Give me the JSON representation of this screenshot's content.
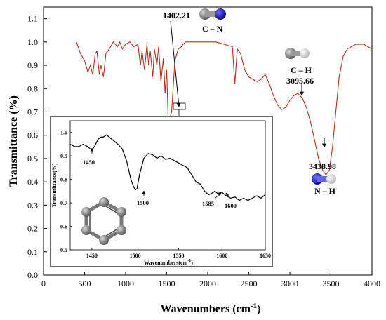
{
  "chart_data": [
    {
      "type": "line",
      "xlabel": "Wavenumbers (cm",
      "xlabel_sup": "-1",
      "xlabel_end": ")",
      "ylabel": "Transmittance (%)",
      "xlim": [
        0,
        4000
      ],
      "ylim": [
        0.0,
        1.15
      ],
      "xticks": [
        "0",
        "500",
        "1000",
        "1500",
        "2000",
        "2500",
        "3000",
        "3500",
        "4000"
      ],
      "yticks": [
        "0.0",
        "0.1",
        "0.2",
        "0.3",
        "0.4",
        "0.5",
        "0.6",
        "0.7",
        "0.8",
        "0.9",
        "1.0",
        "1.1"
      ],
      "series": [
        {
          "color": "#b03020",
          "x": [
            400,
            450,
            500,
            540,
            570,
            600,
            630,
            650,
            680,
            700,
            730,
            760,
            800,
            850,
            900,
            930,
            960,
            1000,
            1050,
            1100,
            1150,
            1180,
            1200,
            1230,
            1260,
            1280,
            1300,
            1330,
            1350,
            1380,
            1402,
            1430,
            1460,
            1480,
            1500,
            1520,
            1560,
            1600,
            1640,
            1680,
            1700,
            1730,
            1760,
            1800,
            1850,
            1900,
            2000,
            2100,
            2200,
            2300,
            2330,
            2345,
            2360,
            2380,
            2400,
            2450,
            2500,
            2550,
            2600,
            2650,
            2700,
            2750,
            2800,
            2850,
            2900,
            2950,
            3000,
            3050,
            3095,
            3150,
            3200,
            3250,
            3300,
            3350,
            3400,
            3440,
            3480,
            3520,
            3560,
            3600,
            3650,
            3700,
            3750,
            3800,
            3850,
            3900,
            3950,
            4000
          ],
          "y": [
            1.0,
            0.95,
            0.92,
            0.87,
            0.9,
            0.86,
            0.95,
            0.96,
            0.86,
            0.9,
            0.85,
            0.95,
            0.97,
            1.0,
            0.98,
            1.0,
            0.97,
            0.99,
            1.0,
            0.98,
            0.99,
            0.9,
            0.96,
            0.88,
            0.99,
            0.9,
            0.96,
            0.85,
            0.97,
            0.9,
            0.98,
            0.83,
            0.93,
            0.78,
            0.88,
            0.65,
            0.7,
            0.92,
            0.97,
            0.98,
            0.99,
            1.0,
            1.0,
            1.0,
            1.0,
            1.0,
            1.0,
            1.0,
            0.99,
            0.98,
            0.82,
            0.9,
            0.97,
            0.96,
            0.95,
            0.88,
            0.85,
            0.84,
            0.83,
            0.84,
            0.86,
            0.82,
            0.77,
            0.73,
            0.71,
            0.72,
            0.75,
            0.77,
            0.78,
            0.76,
            0.72,
            0.66,
            0.58,
            0.5,
            0.45,
            0.43,
            0.45,
            0.55,
            0.7,
            0.85,
            0.94,
            0.97,
            0.98,
            0.99,
            0.99,
            0.99,
            0.98,
            0.97
          ]
        }
      ],
      "annotations": [
        {
          "label": "1402.21",
          "x": 1402,
          "y": 0.98
        },
        {
          "label": "C – N"
        },
        {
          "label": "C – H"
        },
        {
          "label": "3095.66",
          "x": 3095,
          "y": 0.78
        },
        {
          "label": "3438.98",
          "x": 3440,
          "y": 0.43
        },
        {
          "label": "N – H"
        }
      ],
      "grid": false
    },
    {
      "type": "line",
      "ylabel": "Transmittance(%)",
      "xlabel": "Wavenumbers(cm",
      "xlabel_sup": "-1",
      "xlabel_end": ")",
      "xlim": [
        1425,
        1650
      ],
      "ylim": [
        0.5,
        1.05
      ],
      "xticks": [
        "1450",
        "1500",
        "1550",
        "1600",
        "1650"
      ],
      "yticks": [
        "0.5",
        "0.6",
        "0.7",
        "0.8",
        "0.9",
        "1.0"
      ],
      "series": [
        {
          "color": "#000000",
          "x": [
            1425,
            1430,
            1435,
            1440,
            1445,
            1448,
            1450,
            1453,
            1457,
            1460,
            1463,
            1467,
            1470,
            1475,
            1480,
            1485,
            1490,
            1495,
            1498,
            1500,
            1502,
            1505,
            1510,
            1515,
            1520,
            1525,
            1530,
            1535,
            1540,
            1545,
            1550,
            1555,
            1560,
            1565,
            1570,
            1575,
            1580,
            1583,
            1585,
            1588,
            1592,
            1595,
            1600,
            1605,
            1610,
            1615,
            1620,
            1625,
            1630,
            1635,
            1640,
            1645,
            1650
          ],
          "y": [
            0.95,
            0.94,
            0.94,
            0.95,
            0.94,
            0.93,
            0.925,
            0.94,
            0.97,
            0.98,
            0.98,
            0.99,
            0.98,
            0.965,
            0.95,
            0.93,
            0.88,
            0.8,
            0.77,
            0.755,
            0.76,
            0.82,
            0.89,
            0.91,
            0.905,
            0.89,
            0.9,
            0.885,
            0.89,
            0.88,
            0.87,
            0.86,
            0.85,
            0.82,
            0.79,
            0.78,
            0.75,
            0.74,
            0.735,
            0.74,
            0.75,
            0.74,
            0.745,
            0.73,
            0.72,
            0.725,
            0.71,
            0.72,
            0.71,
            0.72,
            0.73,
            0.72,
            0.735
          ]
        }
      ],
      "annotations": [
        {
          "label": "1450",
          "x": 1450,
          "y": 0.925
        },
        {
          "label": "1500",
          "x": 1500,
          "y": 0.755
        },
        {
          "label": "1585",
          "x": 1585,
          "y": 0.735
        },
        {
          "label": "1600",
          "x": 1600,
          "y": 0.745
        }
      ],
      "grid": false
    }
  ],
  "colors": {
    "main_line": "#b03020",
    "inset_line": "#000000",
    "carbon_atom": "#8a8a8a",
    "nitrogen_atom": "#1a1acc",
    "hydrogen_atom": "#f2f2f2"
  }
}
